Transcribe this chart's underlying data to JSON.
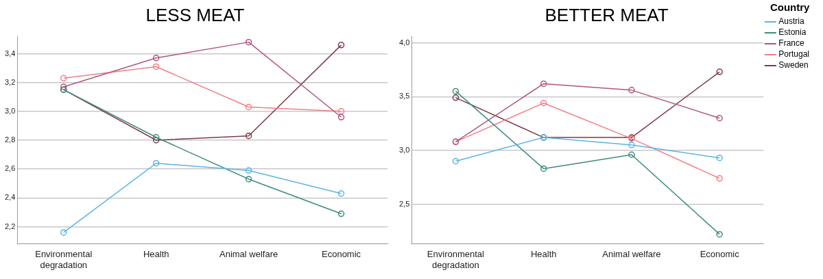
{
  "chart_data": [
    {
      "type": "line",
      "title": "LESS MEAT",
      "categories": [
        "Environmental degradation",
        "Health",
        "Animal welfare",
        "Economic"
      ],
      "series": [
        {
          "color": "#5ab4e5",
          "values": [
            2.16,
            2.64,
            2.59,
            2.43
          ]
        },
        {
          "color": "#3d8a7e",
          "values": [
            3.15,
            2.82,
            2.53,
            2.29
          ]
        },
        {
          "color": "#b0547f",
          "values": [
            3.17,
            3.37,
            3.48,
            2.96
          ]
        },
        {
          "color": "#f27e86",
          "values": [
            3.23,
            3.31,
            3.03,
            3.0
          ]
        },
        {
          "color": "#7a3a48",
          "values": [
            3.15,
            2.8,
            2.83,
            3.46
          ]
        }
      ],
      "ylim": [
        2.08,
        3.52
      ],
      "yticks": [
        {
          "value": 2.2,
          "label": "2,2"
        },
        {
          "value": 2.4,
          "label": "2,4"
        },
        {
          "value": 2.6,
          "label": "2,6"
        },
        {
          "value": 2.8,
          "label": "2,8"
        },
        {
          "value": 3.0,
          "label": "3,0"
        },
        {
          "value": 3.2,
          "label": "3,2"
        },
        {
          "value": 3.4,
          "label": "3,4"
        }
      ],
      "grid": "y",
      "marker": "circle",
      "legend": false
    },
    {
      "type": "line",
      "title": "BETTER MEAT",
      "categories": [
        "Environmental degradation",
        "Health",
        "Animal welfare",
        "Economic"
      ],
      "series": [
        {
          "name": "Austria",
          "color": "#5ab4e5",
          "values": [
            2.9,
            3.12,
            3.05,
            2.93
          ]
        },
        {
          "name": "Estonia",
          "color": "#3d8a7e",
          "values": [
            3.55,
            2.83,
            2.96,
            2.22
          ]
        },
        {
          "name": "France",
          "color": "#b0547f",
          "values": [
            3.08,
            3.62,
            3.56,
            3.3
          ]
        },
        {
          "name": "Portugal",
          "color": "#f27e86",
          "values": [
            3.08,
            3.44,
            3.11,
            2.74
          ]
        },
        {
          "name": "Sweden",
          "color": "#7a3a48",
          "values": [
            3.49,
            3.12,
            3.12,
            3.73
          ]
        }
      ],
      "ylim": [
        2.13,
        4.06
      ],
      "yticks": [
        {
          "value": 2.5,
          "label": "2,5"
        },
        {
          "value": 3.0,
          "label": "3,0"
        },
        {
          "value": 3.5,
          "label": "3,5"
        },
        {
          "value": 4.0,
          "label": "4,0"
        }
      ],
      "grid": "y",
      "marker": "circle",
      "legend": "right",
      "legend_title": "Country"
    }
  ]
}
